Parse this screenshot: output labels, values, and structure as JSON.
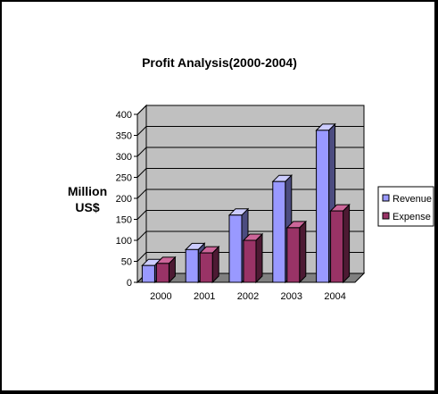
{
  "chart_data": {
    "type": "bar",
    "title": "Profit Analysis(2000-2004)",
    "ylabel_lines": [
      "Million",
      "US$"
    ],
    "xlabel": "",
    "categories": [
      "2000",
      "2001",
      "2002",
      "2003",
      "2004"
    ],
    "series": [
      {
        "name": "Revenue",
        "values": [
          40,
          78,
          160,
          240,
          362
        ],
        "color": "#9999ff",
        "top_color": "#ccccff",
        "side_color": "#4c4c80"
      },
      {
        "name": "Expense",
        "values": [
          45,
          70,
          100,
          130,
          170
        ],
        "color": "#993366",
        "top_color": "#cc6699",
        "side_color": "#4d1a33"
      }
    ],
    "ylim": [
      0,
      400
    ],
    "yticks": [
      "0",
      "50",
      "100",
      "150",
      "200",
      "250",
      "300",
      "350",
      "400"
    ],
    "grid": true,
    "legend_position": "right",
    "wall_color": "#c0c0c0",
    "floor_color": "#808080"
  }
}
